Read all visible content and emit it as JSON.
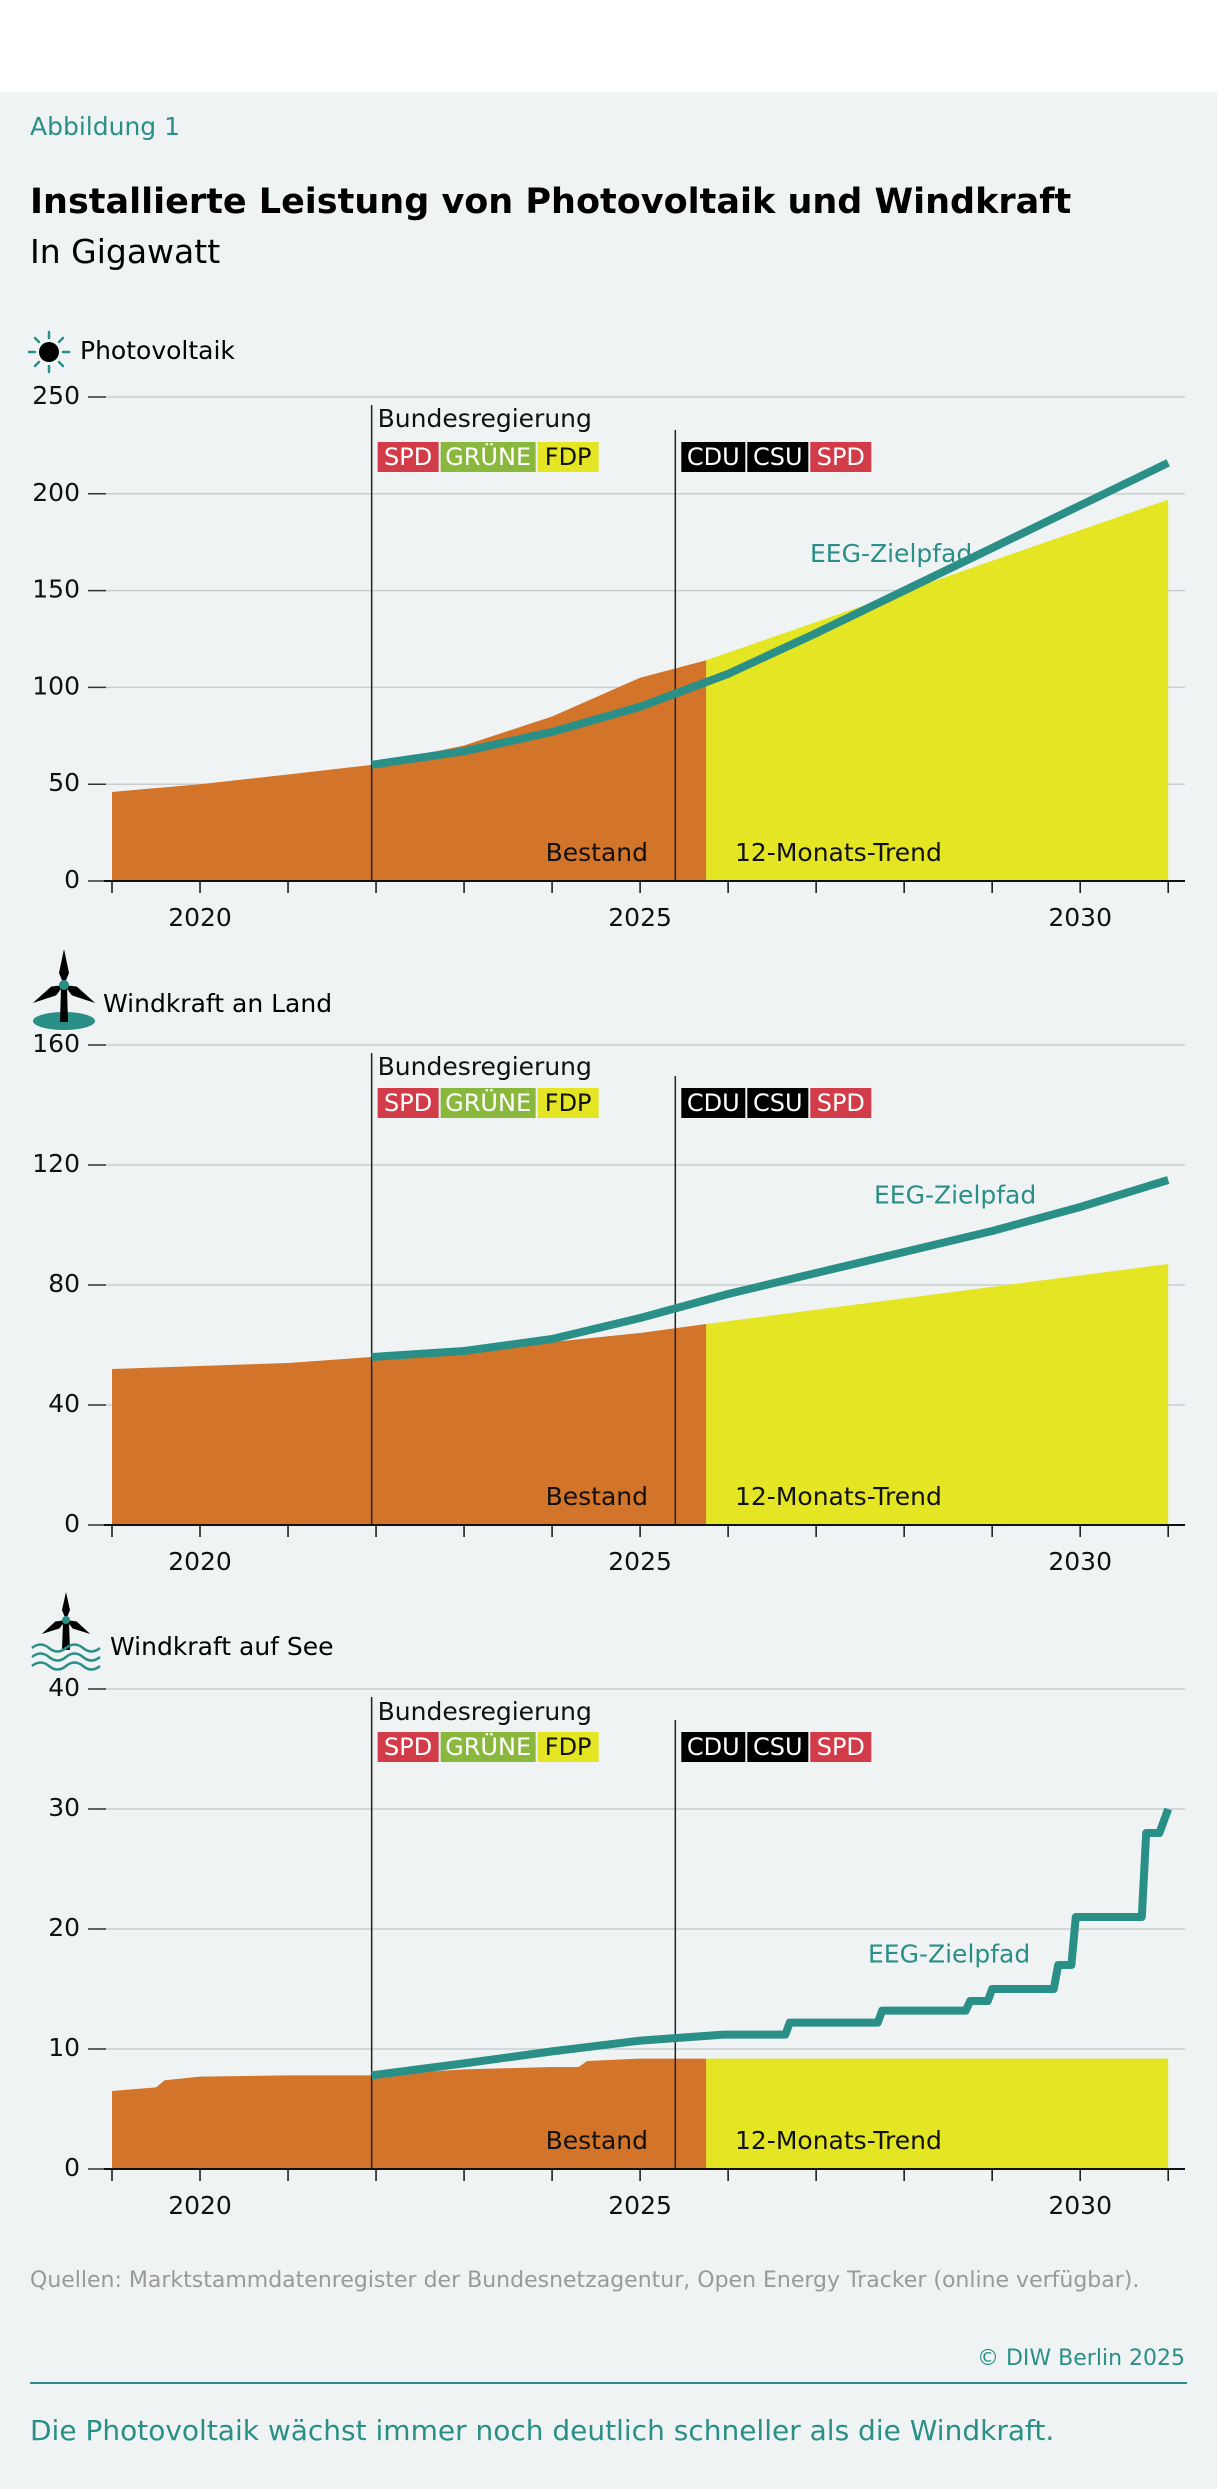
{
  "figure_label": "Abbildung 1",
  "title": "Installierte Leistung von Photovoltaik und Windkraft",
  "subtitle": "In Gigawatt",
  "source": "Quellen: Marktstammdatenregister der Bundesnetzagentur, Open Energy Tracker (online verfügbar).",
  "copyright": "© DIW Berlin 2025",
  "takeaway": "Die Photovoltaik wächst immer noch deutlich schneller als die Windkraft.",
  "colors": {
    "bestand": "#d2742a",
    "trend": "#e4e624",
    "zielpfad": "#2a8f86",
    "spd": "#d23c48",
    "gruene": "#8ab83c",
    "fdp": "#e4e624",
    "cdu": "#000000",
    "csu": "#000000"
  },
  "annotations": {
    "government_label": "Bundesregierung",
    "coalition_1": [
      "SPD",
      "GRÜNE",
      "FDP"
    ],
    "coalition_2": [
      "CDU",
      "CSU",
      "SPD"
    ],
    "bestand_label": "Bestand",
    "trend_label": "12-Monats-Trend",
    "zielpfad_label": "EEG-Zielpfad"
  },
  "chart_data": [
    {
      "type": "area",
      "title": "Photovoltaik",
      "icon": "sun-icon",
      "ylim": [
        0,
        250
      ],
      "yticks": [
        0,
        50,
        100,
        150,
        200,
        250
      ],
      "xlim": [
        2019,
        2031.1
      ],
      "xticks_labeled": [
        2020,
        2025,
        2030
      ],
      "government_change_years": [
        2021.95,
        2025.4
      ],
      "series": [
        {
          "name": "Bestand",
          "x": [
            2019.0,
            2020.0,
            2021.0,
            2021.95,
            2023.0,
            2024.0,
            2024.5,
            2025.0,
            2025.5,
            2025.75
          ],
          "values": [
            46,
            50,
            55,
            60,
            70,
            85,
            95,
            105,
            111,
            114
          ]
        },
        {
          "name": "12-Monats-Trend",
          "x": [
            2025.75,
            2031.0
          ],
          "values": [
            114,
            197
          ]
        },
        {
          "name": "EEG-Zielpfad",
          "x": [
            2021.95,
            2023.0,
            2024.0,
            2025.0,
            2026.0,
            2027.0,
            2028.0,
            2029.0,
            2030.0,
            2031.0
          ],
          "values": [
            60,
            67,
            77,
            90,
            107,
            128,
            150,
            172,
            194,
            216
          ]
        }
      ]
    },
    {
      "type": "area",
      "title": "Windkraft an Land",
      "icon": "wind-turbine-icon",
      "ylim": [
        0,
        160
      ],
      "yticks": [
        0,
        40,
        80,
        120,
        160
      ],
      "xlim": [
        2019,
        2031.1
      ],
      "xticks_labeled": [
        2020,
        2025,
        2030
      ],
      "government_change_years": [
        2021.95,
        2025.4
      ],
      "series": [
        {
          "name": "Bestand",
          "x": [
            2019.0,
            2020.0,
            2021.0,
            2021.95,
            2023.0,
            2024.0,
            2025.0,
            2025.75
          ],
          "values": [
            52,
            53,
            54,
            56,
            58,
            61,
            64,
            67
          ]
        },
        {
          "name": "12-Monats-Trend",
          "x": [
            2025.75,
            2031.0
          ],
          "values": [
            67,
            87
          ]
        },
        {
          "name": "EEG-Zielpfad",
          "x": [
            2021.95,
            2023.0,
            2024.0,
            2025.0,
            2026.0,
            2027.0,
            2028.0,
            2029.0,
            2030.0,
            2031.0
          ],
          "values": [
            56,
            58,
            62,
            69,
            77,
            84,
            91,
            98,
            106,
            115
          ]
        }
      ]
    },
    {
      "type": "area",
      "title": "Windkraft auf See",
      "icon": "offshore-wind-icon",
      "ylim": [
        0,
        40
      ],
      "yticks": [
        0,
        10,
        20,
        30,
        40
      ],
      "xlim": [
        2019,
        2031.1
      ],
      "xticks_labeled": [
        2020,
        2025,
        2030
      ],
      "government_change_years": [
        2021.95,
        2025.4
      ],
      "series": [
        {
          "name": "Bestand",
          "x": [
            2019.0,
            2019.5,
            2019.6,
            2020.0,
            2021.0,
            2021.95,
            2023.0,
            2024.0,
            2024.3,
            2024.4,
            2025.0,
            2025.75
          ],
          "values": [
            6.5,
            6.8,
            7.4,
            7.7,
            7.8,
            7.8,
            8.3,
            8.5,
            8.5,
            9.0,
            9.2,
            9.2
          ]
        },
        {
          "name": "12-Monats-Trend",
          "x": [
            2025.75,
            2031.0
          ],
          "values": [
            9.2,
            9.2
          ]
        },
        {
          "name": "EEG-Zielpfad",
          "x": [
            2021.95,
            2023.0,
            2024.0,
            2025.0,
            2025.95,
            2026.65,
            2026.7,
            2027.7,
            2027.75,
            2028.7,
            2028.75,
            2028.95,
            2029.0,
            2029.7,
            2029.75,
            2029.9,
            2029.95,
            2030.7,
            2030.75,
            2030.9,
            2031.0
          ],
          "values": [
            7.8,
            8.8,
            9.8,
            10.7,
            11.2,
            11.2,
            12.2,
            12.2,
            13.2,
            13.2,
            14.0,
            14.0,
            15.0,
            15.0,
            17.0,
            17.0,
            21.0,
            21.0,
            28.0,
            28.0,
            30.0
          ]
        }
      ]
    }
  ]
}
